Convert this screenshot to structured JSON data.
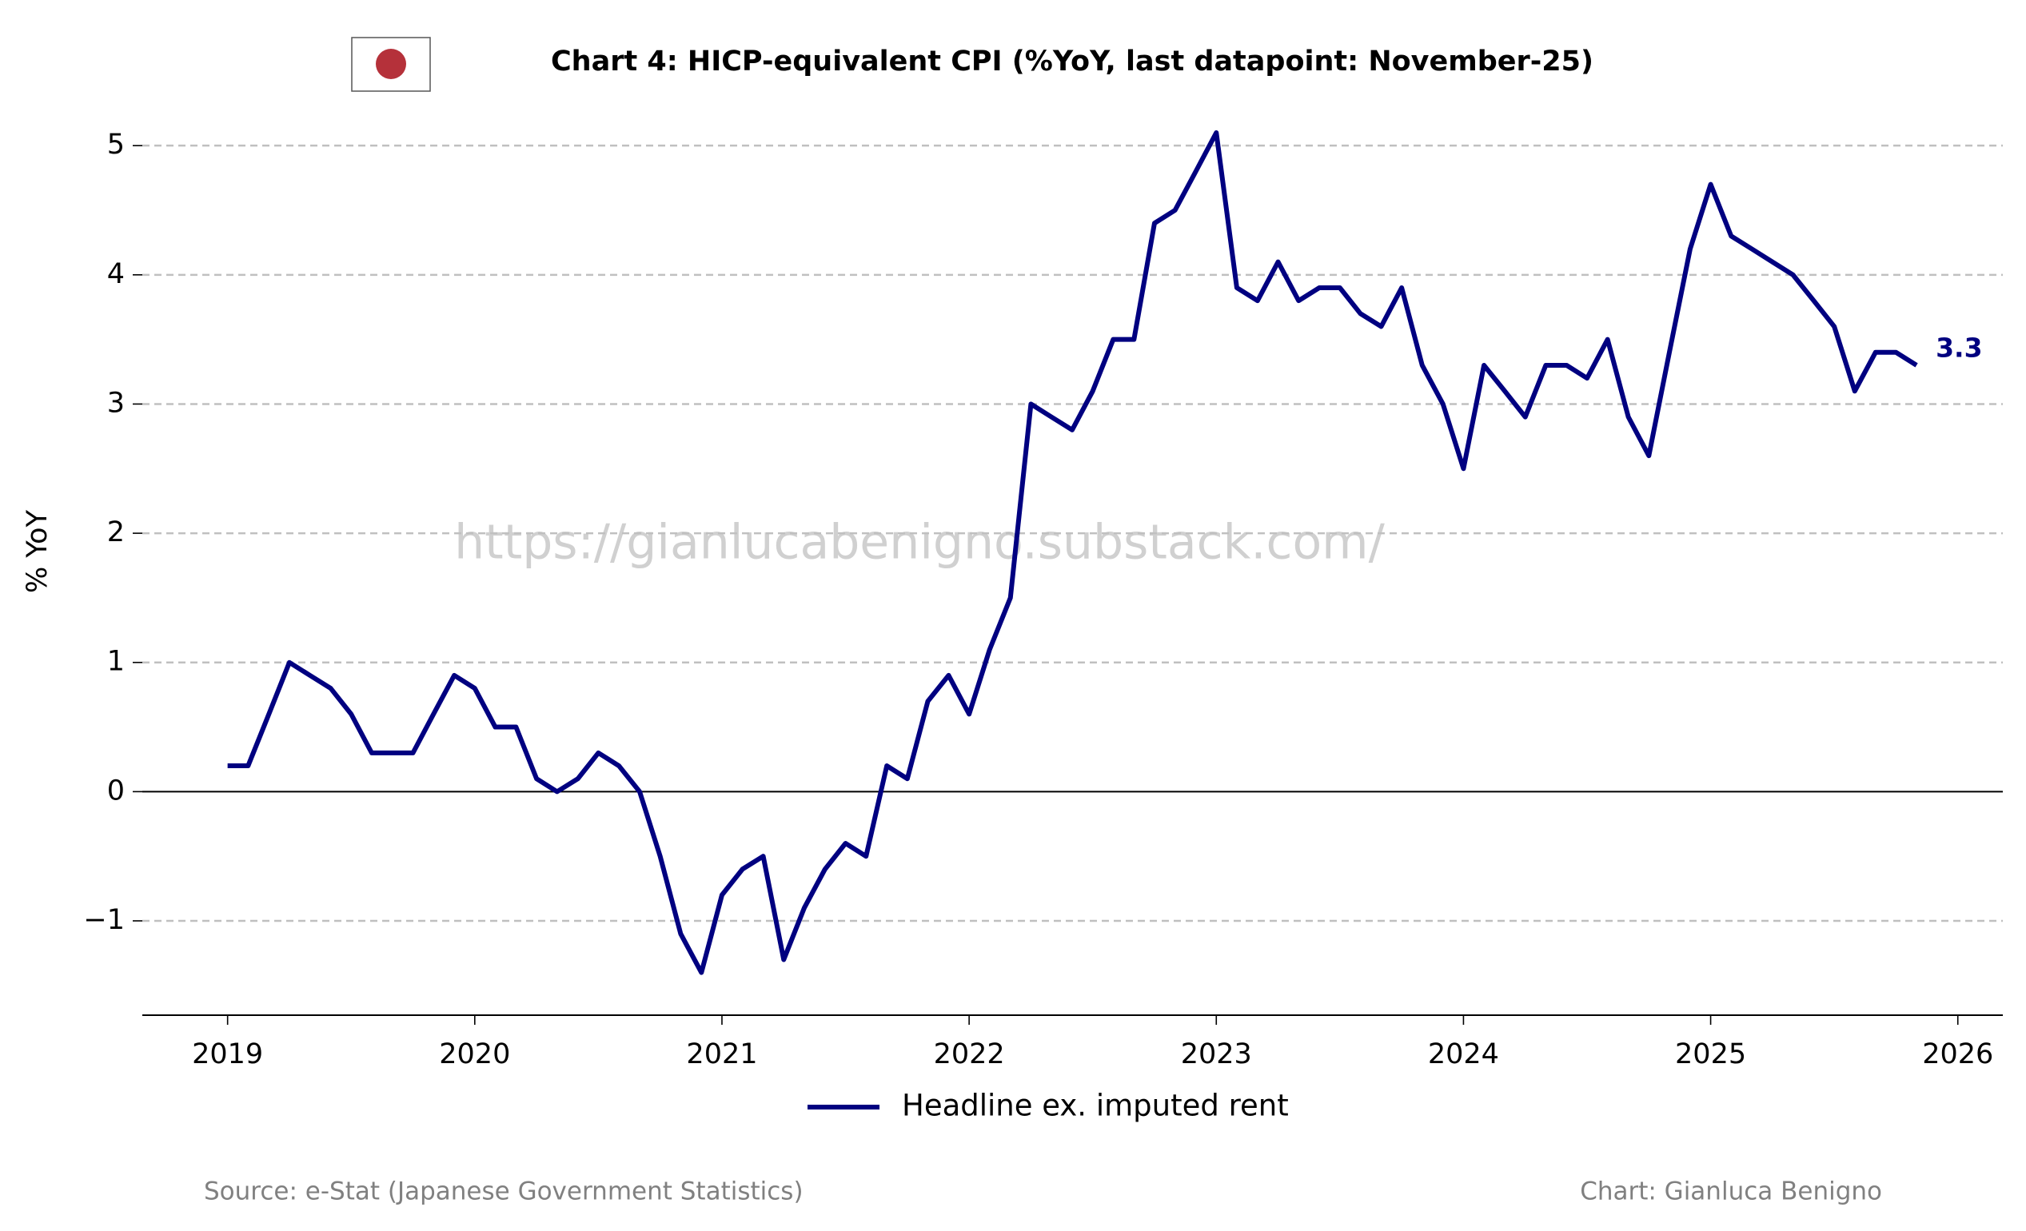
{
  "chart_data": {
    "type": "line",
    "title": "Chart 4: HICP-equivalent CPI (%YoY, last datapoint: November-25)",
    "y_label": "% YoY",
    "watermark": "https://gianlucabenigno.substack.com/",
    "source": "Source: e-Stat (Japanese Government Statistics)",
    "credit": "Chart: Gianluca Benigno",
    "x": [
      2019,
      2019.083,
      2019.167,
      2019.25,
      2019.333,
      2019.417,
      2019.5,
      2019.583,
      2019.667,
      2019.75,
      2019.833,
      2019.917,
      2020,
      2020.083,
      2020.167,
      2020.25,
      2020.333,
      2020.417,
      2020.5,
      2020.583,
      2020.667,
      2020.75,
      2020.833,
      2020.917,
      2021,
      2021.083,
      2021.167,
      2021.25,
      2021.333,
      2021.417,
      2021.5,
      2021.583,
      2021.667,
      2021.75,
      2021.833,
      2021.917,
      2022,
      2022.083,
      2022.167,
      2022.25,
      2022.333,
      2022.417,
      2022.5,
      2022.583,
      2022.667,
      2022.75,
      2022.833,
      2022.917,
      2023,
      2023.083,
      2023.167,
      2023.25,
      2023.333,
      2023.417,
      2023.5,
      2023.583,
      2023.667,
      2023.75,
      2023.833,
      2023.917,
      2024,
      2024.083,
      2024.167,
      2024.25,
      2024.333,
      2024.417,
      2024.5,
      2024.583,
      2024.667,
      2024.75,
      2024.833,
      2024.917,
      2025,
      2025.083,
      2025.167,
      2025.25,
      2025.333,
      2025.417,
      2025.5,
      2025.583,
      2025.667,
      2025.75,
      2025.833
    ],
    "series": [
      {
        "name": "Headline ex. imputed rent",
        "color": "#000080",
        "values": [
          0.2,
          0.2,
          0.6,
          1.0,
          0.9,
          0.8,
          0.6,
          0.3,
          0.3,
          0.3,
          0.6,
          0.9,
          0.8,
          0.5,
          0.5,
          0.1,
          0.0,
          0.1,
          0.3,
          0.2,
          0.0,
          -0.5,
          -1.1,
          -1.4,
          -0.8,
          -0.6,
          -0.5,
          -1.3,
          -0.9,
          -0.6,
          -0.4,
          -0.5,
          0.2,
          0.1,
          0.7,
          0.9,
          0.6,
          1.1,
          1.5,
          3.0,
          2.9,
          2.8,
          3.1,
          3.5,
          3.5,
          4.4,
          4.5,
          4.8,
          5.1,
          3.9,
          3.8,
          4.1,
          3.8,
          3.9,
          3.9,
          3.7,
          3.6,
          3.9,
          3.3,
          3.0,
          2.5,
          3.3,
          3.1,
          2.9,
          3.3,
          3.3,
          3.2,
          3.5,
          2.9,
          2.6,
          3.4,
          4.2,
          4.7,
          4.3,
          4.2,
          4.1,
          4.0,
          3.8,
          3.6,
          3.1,
          3.4,
          3.4,
          3.3
        ]
      }
    ],
    "xlim": [
      2018.655,
      2026.182
    ],
    "xticks": [
      2019,
      2020,
      2021,
      2022,
      2023,
      2024,
      2025,
      2026
    ],
    "ylim": [
      -1.73,
      5.23
    ],
    "yticks": [
      {
        "value": -1,
        "label": "−1"
      },
      0,
      1,
      2,
      3,
      4,
      5
    ],
    "grid": true,
    "legend": "lower center"
  }
}
